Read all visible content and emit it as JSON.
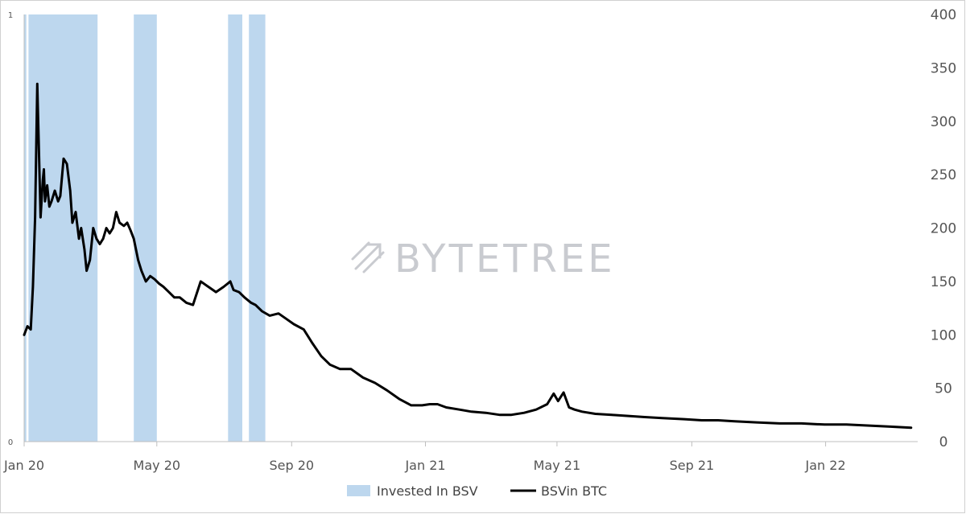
{
  "chart_data": {
    "type": "line",
    "title": "",
    "xlabel": "",
    "ylabel": "",
    "x_ticks": [
      "Jan 20",
      "May 20",
      "Sep 20",
      "Jan 21",
      "May 21",
      "Sep 21",
      "Jan 22"
    ],
    "y_right": {
      "range": [
        0,
        400
      ],
      "ticks": [
        "0",
        "50",
        "100",
        "150",
        "200",
        "250",
        "300",
        "350",
        "400"
      ]
    },
    "y_left": {
      "range": [
        0,
        1
      ],
      "ticks": [
        "0",
        "1"
      ]
    },
    "watermark": "BYTETREE",
    "legend": {
      "placement": "bottom",
      "entries": [
        "Invested In BSV",
        "BSVin BTC"
      ]
    },
    "colors": {
      "invested": "#bdd7ee",
      "line": "#000000",
      "axis": "#bfbfbf"
    },
    "series": [
      {
        "name": "BSVin BTC",
        "axis": "right",
        "x": [
          "2020-01-01",
          "2020-01-04",
          "2020-01-07",
          "2020-01-09",
          "2020-01-11",
          "2020-01-13",
          "2020-01-15",
          "2020-01-16",
          "2020-01-18",
          "2020-01-19",
          "2020-01-20",
          "2020-01-22",
          "2020-01-24",
          "2020-01-26",
          "2020-01-29",
          "2020-02-01",
          "2020-02-03",
          "2020-02-06",
          "2020-02-09",
          "2020-02-12",
          "2020-02-14",
          "2020-02-17",
          "2020-02-20",
          "2020-02-22",
          "2020-02-25",
          "2020-02-27",
          "2020-03-01",
          "2020-03-04",
          "2020-03-07",
          "2020-03-10",
          "2020-03-13",
          "2020-03-16",
          "2020-03-19",
          "2020-03-22",
          "2020-03-25",
          "2020-03-28",
          "2020-04-01",
          "2020-04-04",
          "2020-04-07",
          "2020-04-10",
          "2020-04-14",
          "2020-04-17",
          "2020-04-21",
          "2020-04-25",
          "2020-04-29",
          "2020-05-03",
          "2020-05-07",
          "2020-05-12",
          "2020-05-17",
          "2020-05-22",
          "2020-05-28",
          "2020-06-03",
          "2020-06-10",
          "2020-06-17",
          "2020-06-24",
          "2020-07-01",
          "2020-07-07",
          "2020-07-10",
          "2020-07-15",
          "2020-07-20",
          "2020-07-26",
          "2020-07-30",
          "2020-08-05",
          "2020-08-12",
          "2020-08-20",
          "2020-08-27",
          "2020-09-03",
          "2020-09-12",
          "2020-09-20",
          "2020-09-28",
          "2020-10-06",
          "2020-10-15",
          "2020-10-25",
          "2020-11-05",
          "2020-11-16",
          "2020-11-27",
          "2020-12-08",
          "2020-12-19",
          "2020-12-29",
          "2021-01-05",
          "2021-01-12",
          "2021-01-20",
          "2021-02-01",
          "2021-02-12",
          "2021-02-25",
          "2021-03-10",
          "2021-03-20",
          "2021-04-01",
          "2021-04-12",
          "2021-04-22",
          "2021-04-28",
          "2021-05-02",
          "2021-05-07",
          "2021-05-12",
          "2021-05-17",
          "2021-05-24",
          "2021-06-05",
          "2021-06-20",
          "2021-07-05",
          "2021-07-20",
          "2021-08-05",
          "2021-08-25",
          "2021-09-10",
          "2021-09-25",
          "2021-10-10",
          "2021-10-30",
          "2021-11-20",
          "2021-12-10",
          "2021-12-31",
          "2022-01-20",
          "2022-02-10",
          "2022-03-01",
          "2022-03-20"
        ],
        "values": [
          100,
          108,
          105,
          145,
          210,
          335,
          250,
          210,
          245,
          255,
          225,
          240,
          220,
          225,
          235,
          225,
          230,
          265,
          260,
          235,
          205,
          215,
          190,
          200,
          180,
          160,
          170,
          200,
          190,
          185,
          190,
          200,
          195,
          200,
          215,
          205,
          202,
          205,
          198,
          190,
          170,
          160,
          150,
          155,
          152,
          148,
          145,
          140,
          135,
          135,
          130,
          128,
          150,
          145,
          140,
          145,
          150,
          142,
          140,
          135,
          130,
          128,
          122,
          118,
          120,
          115,
          110,
          105,
          92,
          80,
          72,
          68,
          68,
          60,
          55,
          48,
          40,
          34,
          34,
          35,
          35,
          32,
          30,
          28,
          27,
          25,
          25,
          27,
          30,
          35,
          45,
          38,
          46,
          32,
          30,
          28,
          26,
          25,
          24,
          23,
          22,
          21,
          20,
          20,
          19,
          18,
          17,
          17,
          16,
          16,
          15,
          14,
          13
        ]
      }
    ],
    "invested_periods": [
      {
        "start": "2020-01-01",
        "end": "2020-01-03"
      },
      {
        "start": "2020-01-05",
        "end": "2020-03-08"
      },
      {
        "start": "2020-04-10",
        "end": "2020-05-01"
      },
      {
        "start": "2020-07-05",
        "end": "2020-07-18"
      },
      {
        "start": "2020-07-24",
        "end": "2020-08-08"
      }
    ]
  }
}
